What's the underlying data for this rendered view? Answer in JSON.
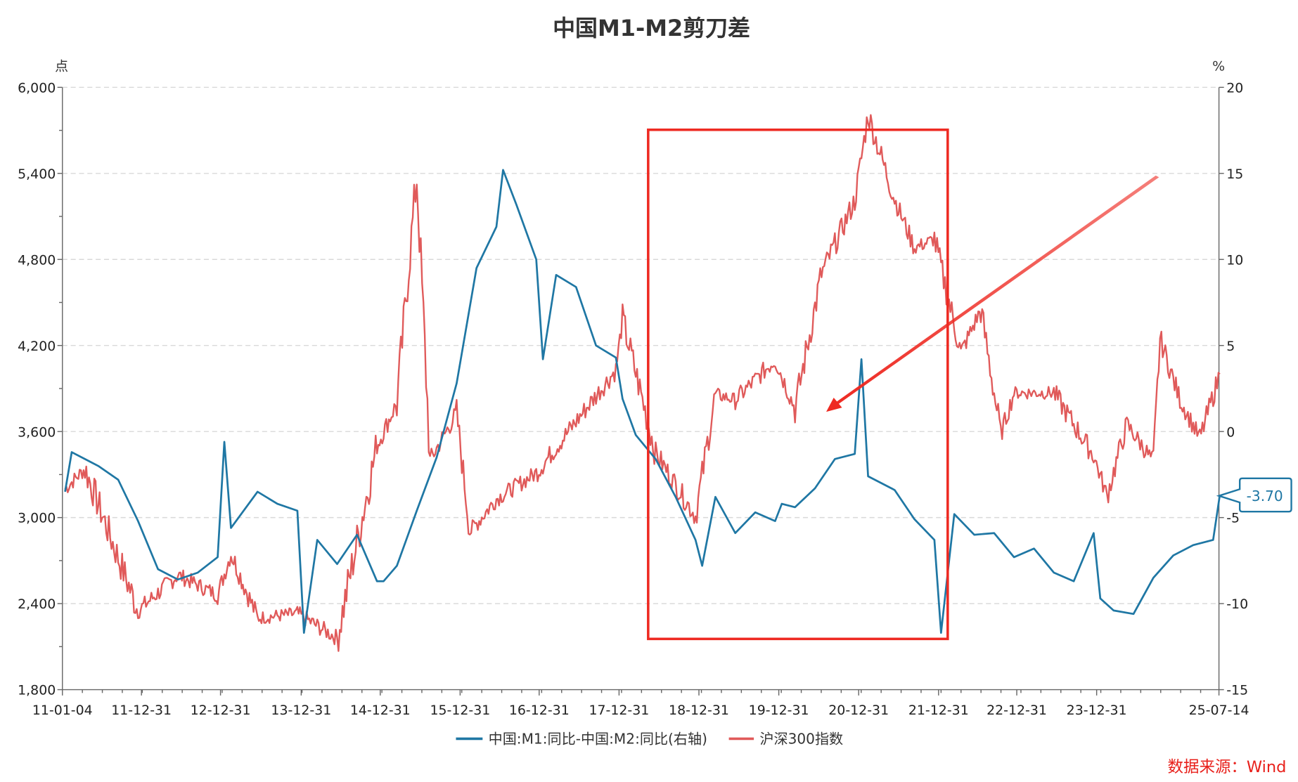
{
  "title": "中国M1-M2剪刀差",
  "left_axis": {
    "unit": "点",
    "ticks": [
      "6,000",
      "5,400",
      "4,800",
      "4,200",
      "3,600",
      "3,000",
      "2,400",
      "1,800"
    ],
    "min": 1800,
    "max": 6000
  },
  "right_axis": {
    "unit": "%",
    "ticks": [
      "20",
      "15",
      "10",
      "5",
      "0",
      "-5",
      "-10",
      "-15"
    ],
    "min": -15,
    "max": 20
  },
  "x_axis": {
    "ticks": [
      "11-01-04",
      "11-12-31",
      "12-12-31",
      "13-12-31",
      "14-12-31",
      "15-12-31",
      "16-12-31",
      "17-12-31",
      "18-12-31",
      "19-12-31",
      "20-12-31",
      "21-12-31",
      "22-12-31",
      "23-12-31",
      "25-07-14"
    ]
  },
  "legend": {
    "series1": "中国:M1:同比-中国:M2:同比(右轴)",
    "series2": "沪深300指数"
  },
  "last_value_label": "-3.70",
  "source": "数据来源：Wind",
  "colors": {
    "m1m2": "#1f77a4",
    "hs300": "#e05a5a",
    "highlight": "#ee2a22"
  },
  "chart_data": {
    "type": "line",
    "title": "中国M1-M2剪刀差",
    "x_range": [
      "2011-01-04",
      "2025-07-14"
    ],
    "xlabel": "",
    "ylabel_left": "点",
    "ylabel_right": "%",
    "ylim_left": [
      1800,
      6000
    ],
    "ylim_right": [
      -15,
      20
    ],
    "grid": true,
    "legend_position": "bottom",
    "series": [
      {
        "name": "中国:M1:同比-中国:M2:同比(右轴)",
        "axis": "right",
        "x": [
          "2011-01",
          "2011-02",
          "2011-06",
          "2011-09",
          "2011-12",
          "2012-03",
          "2012-06",
          "2012-09",
          "2012-12",
          "2013-01",
          "2013-02",
          "2013-06",
          "2013-09",
          "2013-12",
          "2014-01",
          "2014-03",
          "2014-06",
          "2014-09",
          "2014-12",
          "2015-01",
          "2015-03",
          "2015-06",
          "2015-09",
          "2015-12",
          "2016-03",
          "2016-06",
          "2016-07",
          "2016-09",
          "2016-12",
          "2017-01",
          "2017-03",
          "2017-06",
          "2017-09",
          "2017-12",
          "2018-01",
          "2018-03",
          "2018-06",
          "2018-09",
          "2018-12",
          "2019-01",
          "2019-03",
          "2019-06",
          "2019-09",
          "2019-12",
          "2020-01",
          "2020-03",
          "2020-06",
          "2020-09",
          "2020-12",
          "2021-01",
          "2021-02",
          "2021-06",
          "2021-09",
          "2021-12",
          "2022-01",
          "2022-03",
          "2022-06",
          "2022-09",
          "2022-12",
          "2023-03",
          "2023-06",
          "2023-09",
          "2023-12",
          "2024-01",
          "2024-03",
          "2024-06",
          "2024-09",
          "2024-12",
          "2025-03",
          "2025-06",
          "2025-07"
        ],
        "values": [
          -3.5,
          -1.2,
          -2.0,
          -2.8,
          -5.2,
          -8.0,
          -8.6,
          -8.2,
          -7.3,
          -0.6,
          -5.6,
          -3.5,
          -4.2,
          -4.6,
          -11.7,
          -6.3,
          -7.7,
          -6.0,
          -8.7,
          -8.7,
          -7.8,
          -4.6,
          -1.5,
          2.8,
          9.5,
          11.9,
          15.2,
          13.2,
          10.0,
          4.2,
          9.1,
          8.4,
          5.0,
          4.3,
          1.9,
          -0.2,
          -1.6,
          -3.8,
          -6.3,
          -7.8,
          -3.8,
          -5.9,
          -4.7,
          -5.2,
          -4.2,
          -4.4,
          -3.3,
          -1.6,
          -1.3,
          4.2,
          -2.6,
          -3.4,
          -5.1,
          -6.3,
          -11.7,
          -4.8,
          -6.0,
          -5.9,
          -7.3,
          -6.8,
          -8.2,
          -8.7,
          -5.9,
          -9.7,
          -10.4,
          -10.6,
          -8.5,
          -7.2,
          -6.6,
          -6.3,
          -3.7
        ]
      },
      {
        "name": "沪深300指数",
        "axis": "left",
        "x": [
          "2011-01",
          "2011-04",
          "2011-12",
          "2012-06",
          "2012-12",
          "2013-02",
          "2013-06",
          "2013-12",
          "2014-06",
          "2014-12",
          "2015-03",
          "2015-06",
          "2015-08",
          "2015-12",
          "2016-02",
          "2016-06",
          "2016-12",
          "2017-06",
          "2017-12",
          "2018-01",
          "2018-06",
          "2018-12",
          "2019-03",
          "2019-06",
          "2019-12",
          "2020-03",
          "2020-07",
          "2020-12",
          "2021-02",
          "2021-06",
          "2021-09",
          "2021-12",
          "2022-04",
          "2022-07",
          "2022-10",
          "2022-12",
          "2023-06",
          "2023-12",
          "2024-02",
          "2024-05",
          "2024-09",
          "2024-10",
          "2025-01",
          "2025-04",
          "2025-07"
        ],
        "values": [
          3200,
          3340,
          2350,
          2600,
          2460,
          2750,
          2300,
          2330,
          2160,
          3500,
          3800,
          5380,
          3400,
          3730,
          2900,
          3130,
          3310,
          3670,
          4030,
          4380,
          3450,
          3010,
          3860,
          3820,
          4100,
          3760,
          4700,
          5210,
          5810,
          5220,
          4880,
          4940,
          4150,
          4450,
          3580,
          3870,
          3870,
          3430,
          3150,
          3650,
          3390,
          4250,
          3820,
          3550,
          4000
        ]
      }
    ],
    "annotations": [
      {
        "type": "rectangle",
        "from": "2018-03",
        "to": "2022-01",
        "color": "#ee2a22"
      },
      {
        "type": "arrow",
        "color": "#ee2a22",
        "from_pos": "upper right near 2024 at right-axis 15%",
        "to_pos": "around 2019-11 at ~3,750 points"
      },
      {
        "type": "label",
        "text": "-3.70",
        "series": "中国:M1:同比-中国:M2:同比(右轴)"
      }
    ]
  }
}
